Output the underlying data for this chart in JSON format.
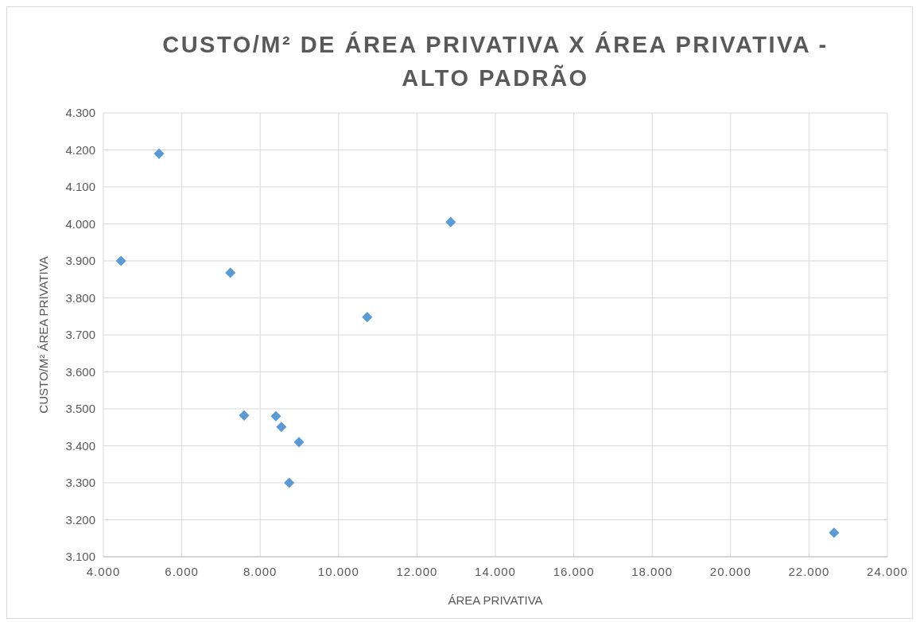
{
  "chart_data": {
    "type": "scatter",
    "title": "CUSTO/M² DE ÁREA PRIVATIVA X ÁREA PRIVATIVA - ALTO PADRÃO",
    "xlabel": "ÁREA PRIVATIVA",
    "ylabel": "CUSTO/M² ÁREA PRIVATIVA",
    "series": [
      {
        "color": "#5b9bd5",
        "x": [
          5420,
          4450,
          7240,
          7590,
          8400,
          8540,
          8990,
          8740,
          10730,
          12860,
          22640
        ],
        "values": [
          4190,
          3900,
          3868,
          3482,
          3480,
          3451,
          3410,
          3300,
          3748,
          4005,
          3165
        ]
      }
    ],
    "xlim": [
      4000,
      24000
    ],
    "xticks": [
      {
        "value": 4000,
        "label": "4.000"
      },
      {
        "value": 6000,
        "label": "6.000"
      },
      {
        "value": 8000,
        "label": "8.000"
      },
      {
        "value": 10000,
        "label": "10.000"
      },
      {
        "value": 12000,
        "label": "12.000"
      },
      {
        "value": 14000,
        "label": "14.000"
      },
      {
        "value": 16000,
        "label": "16.000"
      },
      {
        "value": 18000,
        "label": "18.000"
      },
      {
        "value": 20000,
        "label": "20.000"
      },
      {
        "value": 22000,
        "label": "22.000"
      },
      {
        "value": 24000,
        "label": "24.000"
      }
    ],
    "ylim": [
      3100,
      4300
    ],
    "yticks": [
      {
        "value": 3100,
        "label": "3.100"
      },
      {
        "value": 3200,
        "label": "3.200"
      },
      {
        "value": 3300,
        "label": "3.300"
      },
      {
        "value": 3400,
        "label": "3.400"
      },
      {
        "value": 3500,
        "label": "3.500"
      },
      {
        "value": 3600,
        "label": "3.600"
      },
      {
        "value": 3700,
        "label": "3.700"
      },
      {
        "value": 3800,
        "label": "3.800"
      },
      {
        "value": 3900,
        "label": "3.900"
      },
      {
        "value": 4000,
        "label": "4.000"
      },
      {
        "value": 4100,
        "label": "4.100"
      },
      {
        "value": 4200,
        "label": "4.200"
      },
      {
        "value": 4300,
        "label": "4.300"
      }
    ],
    "grid": true,
    "marker": "diamond"
  }
}
